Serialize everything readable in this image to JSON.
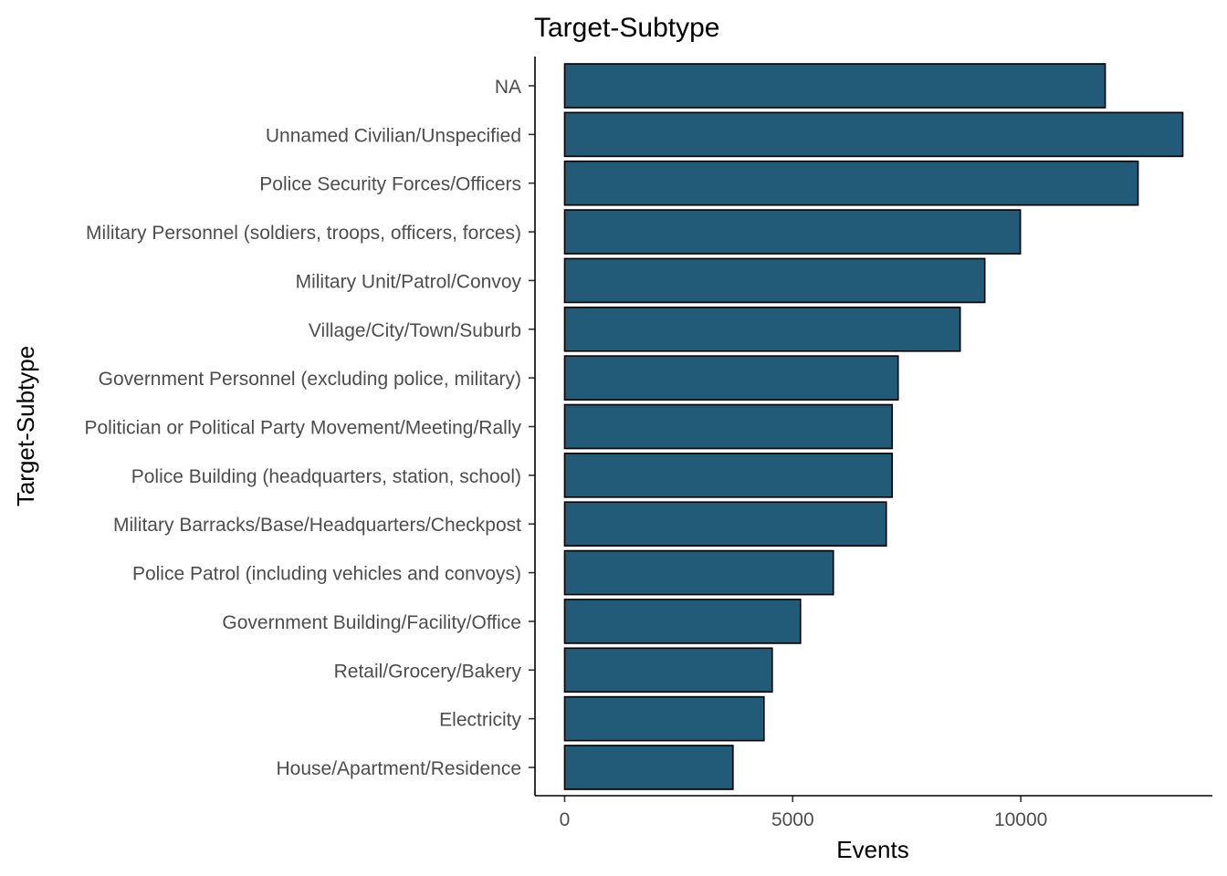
{
  "chart_data": {
    "type": "bar",
    "orientation": "horizontal",
    "title": "Target-Subtype",
    "xlabel": "Events",
    "ylabel": "Target-Subtype",
    "categories": [
      "NA",
      "Unnamed Civilian/Unspecified",
      "Police Security Forces/Officers",
      "Military Personnel (soldiers, troops, officers, forces)",
      "Military Unit/Patrol/Convoy",
      "Village/City/Town/Suburb",
      "Government Personnel (excluding police, military)",
      "Politician or Political Party Movement/Meeting/Rally",
      "Police Building (headquarters, station, school)",
      "Military Barracks/Base/Headquarters/Checkpost",
      "Police Patrol (including vehicles and convoys)",
      "Government Building/Facility/Office",
      "Retail/Grocery/Bakery",
      "Electricity",
      "House/Apartment/Residence"
    ],
    "values": [
      11850,
      13550,
      12570,
      9990,
      9210,
      8670,
      7310,
      7180,
      7180,
      7050,
      5890,
      5170,
      4550,
      4370,
      3690
    ],
    "xticks": [
      0,
      5000,
      10000
    ],
    "xlim": [
      -650,
      14200
    ],
    "grid": false,
    "legend": "none",
    "colors": {
      "bar_fill": "#225B78",
      "bar_outline": "#000000"
    }
  }
}
